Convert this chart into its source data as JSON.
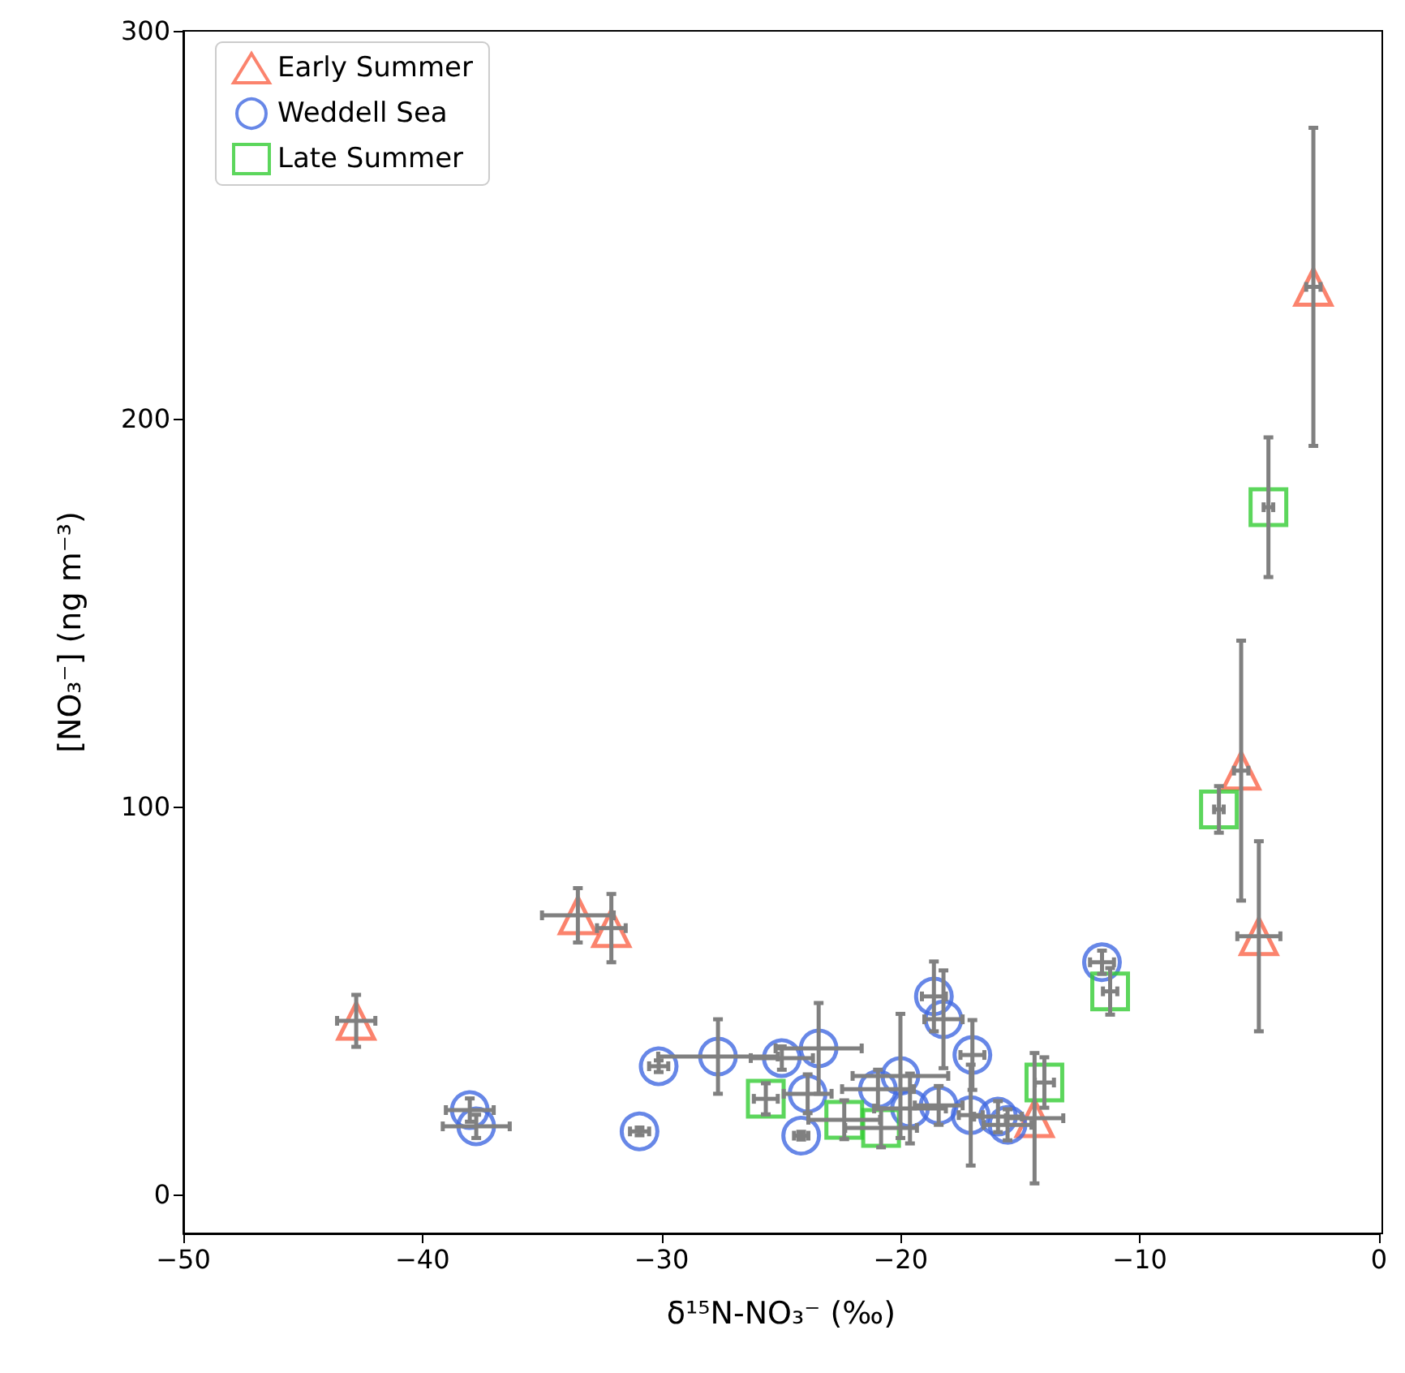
{
  "chart_data": {
    "type": "scatter",
    "xlabel": "δ¹⁵N-NO₃⁻ (‰)",
    "ylabel": "[NO₃⁻] (ng m⁻³)",
    "xlim": [
      -50,
      0
    ],
    "ylim": [
      -10,
      300
    ],
    "xticks": [
      -50,
      -40,
      -30,
      -20,
      -10,
      0
    ],
    "yticks": [
      0,
      100,
      200,
      300
    ],
    "grid": false,
    "legend": "top left",
    "series": [
      {
        "name": "Early Summer",
        "color": "#fa6448",
        "marker": "triangle",
        "x": [
          -42.77,
          -33.5,
          -32.1,
          -14.4,
          -5.02,
          -5.76,
          -2.74
        ],
        "values": [
          44.8,
          72,
          68.7,
          19.7,
          66.6,
          109.3,
          234
        ],
        "errors": [
          6.7,
          7,
          8.8,
          16.8,
          24.5,
          33.5,
          41
        ],
        "xerrors": [
          0.8,
          1.5,
          0.6,
          1.2,
          0.9,
          0.3,
          0.3
        ]
      },
      {
        "name": "Weddell Sea",
        "color": "#4169e1",
        "marker": "circle",
        "x": [
          -38.02,
          -37.75,
          -30.92,
          -30.12,
          -27.64,
          -24.97,
          -23.43,
          -23.89,
          -24.16,
          -20.95,
          -20.01,
          -19.61,
          -18.41,
          -18.61,
          -18.21,
          -17.0,
          -17.07,
          -15.93,
          -15.53,
          -11.58
        ],
        "values": [
          21.8,
          17.6,
          16.3,
          33.1,
          35.6,
          35.2,
          37.7,
          26,
          15.2,
          27.2,
          30.6,
          22.2,
          23,
          51.1,
          45.2,
          36,
          20.5,
          20.1,
          18,
          59.9
        ],
        "errors": [
          3,
          3,
          1,
          1.5,
          9.6,
          3,
          11.7,
          5,
          1,
          5,
          16,
          9,
          5,
          9,
          12.6,
          9,
          13,
          4,
          4,
          3
        ],
        "xerrors": [
          1,
          1.4,
          0.4,
          0.4,
          2.5,
          1.3,
          1.8,
          1,
          0.3,
          1.5,
          2,
          1.5,
          1,
          0.5,
          0.8,
          0.5,
          0.5,
          1,
          1,
          0.5
        ]
      },
      {
        "name": "Late Summer",
        "color": "#33cc33",
        "marker": "square",
        "x": [
          -4.62,
          -6.69,
          -11.24,
          -13.99,
          -25.64,
          -22.36,
          -20.82
        ],
        "values": [
          177.2,
          99.3,
          52.4,
          28.9,
          24.7,
          19.3,
          17.2
        ],
        "errors": [
          18,
          6,
          6,
          6.5,
          4,
          5,
          5
        ],
        "xerrors": [
          0.2,
          0.2,
          0.3,
          0.4,
          0.5,
          1.5,
          1.5
        ]
      }
    ]
  }
}
